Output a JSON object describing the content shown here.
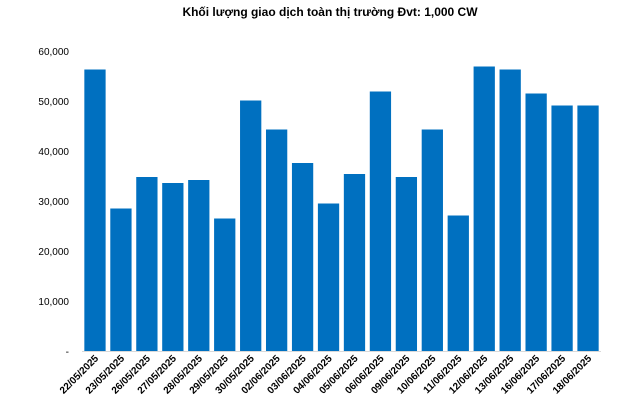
{
  "chart_data": {
    "type": "bar",
    "title": "Khối lượng giao dịch toàn thị trường Đvt: 1,000 CW",
    "xlabel": "",
    "ylabel": "",
    "ylim": [
      0,
      60000
    ],
    "yticks": [
      "-",
      "10,000",
      "20,000",
      "30,000",
      "40,000",
      "50,000",
      "60,000"
    ],
    "ytick_values": [
      0,
      10000,
      20000,
      30000,
      40000,
      50000,
      60000
    ],
    "grid": false,
    "legend": "none",
    "bar_color": "#0070C0",
    "categories": [
      "22/05/2025",
      "23/05/2025",
      "26/05/2025",
      "27/05/2025",
      "28/05/2025",
      "29/05/2025",
      "30/05/2025",
      "02/06/2025",
      "03/06/2025",
      "04/06/2025",
      "05/06/2025",
      "06/06/2025",
      "09/06/2025",
      "10/06/2025",
      "11/06/2025",
      "12/06/2025",
      "13/06/2025",
      "16/06/2025",
      "17/06/2025",
      "18/06/2025"
    ],
    "values": [
      56300,
      28500,
      34800,
      33600,
      34200,
      26500,
      50100,
      44300,
      37600,
      29500,
      35400,
      51900,
      34800,
      44300,
      27100,
      56900,
      56300,
      51500,
      49100,
      49100
    ]
  }
}
